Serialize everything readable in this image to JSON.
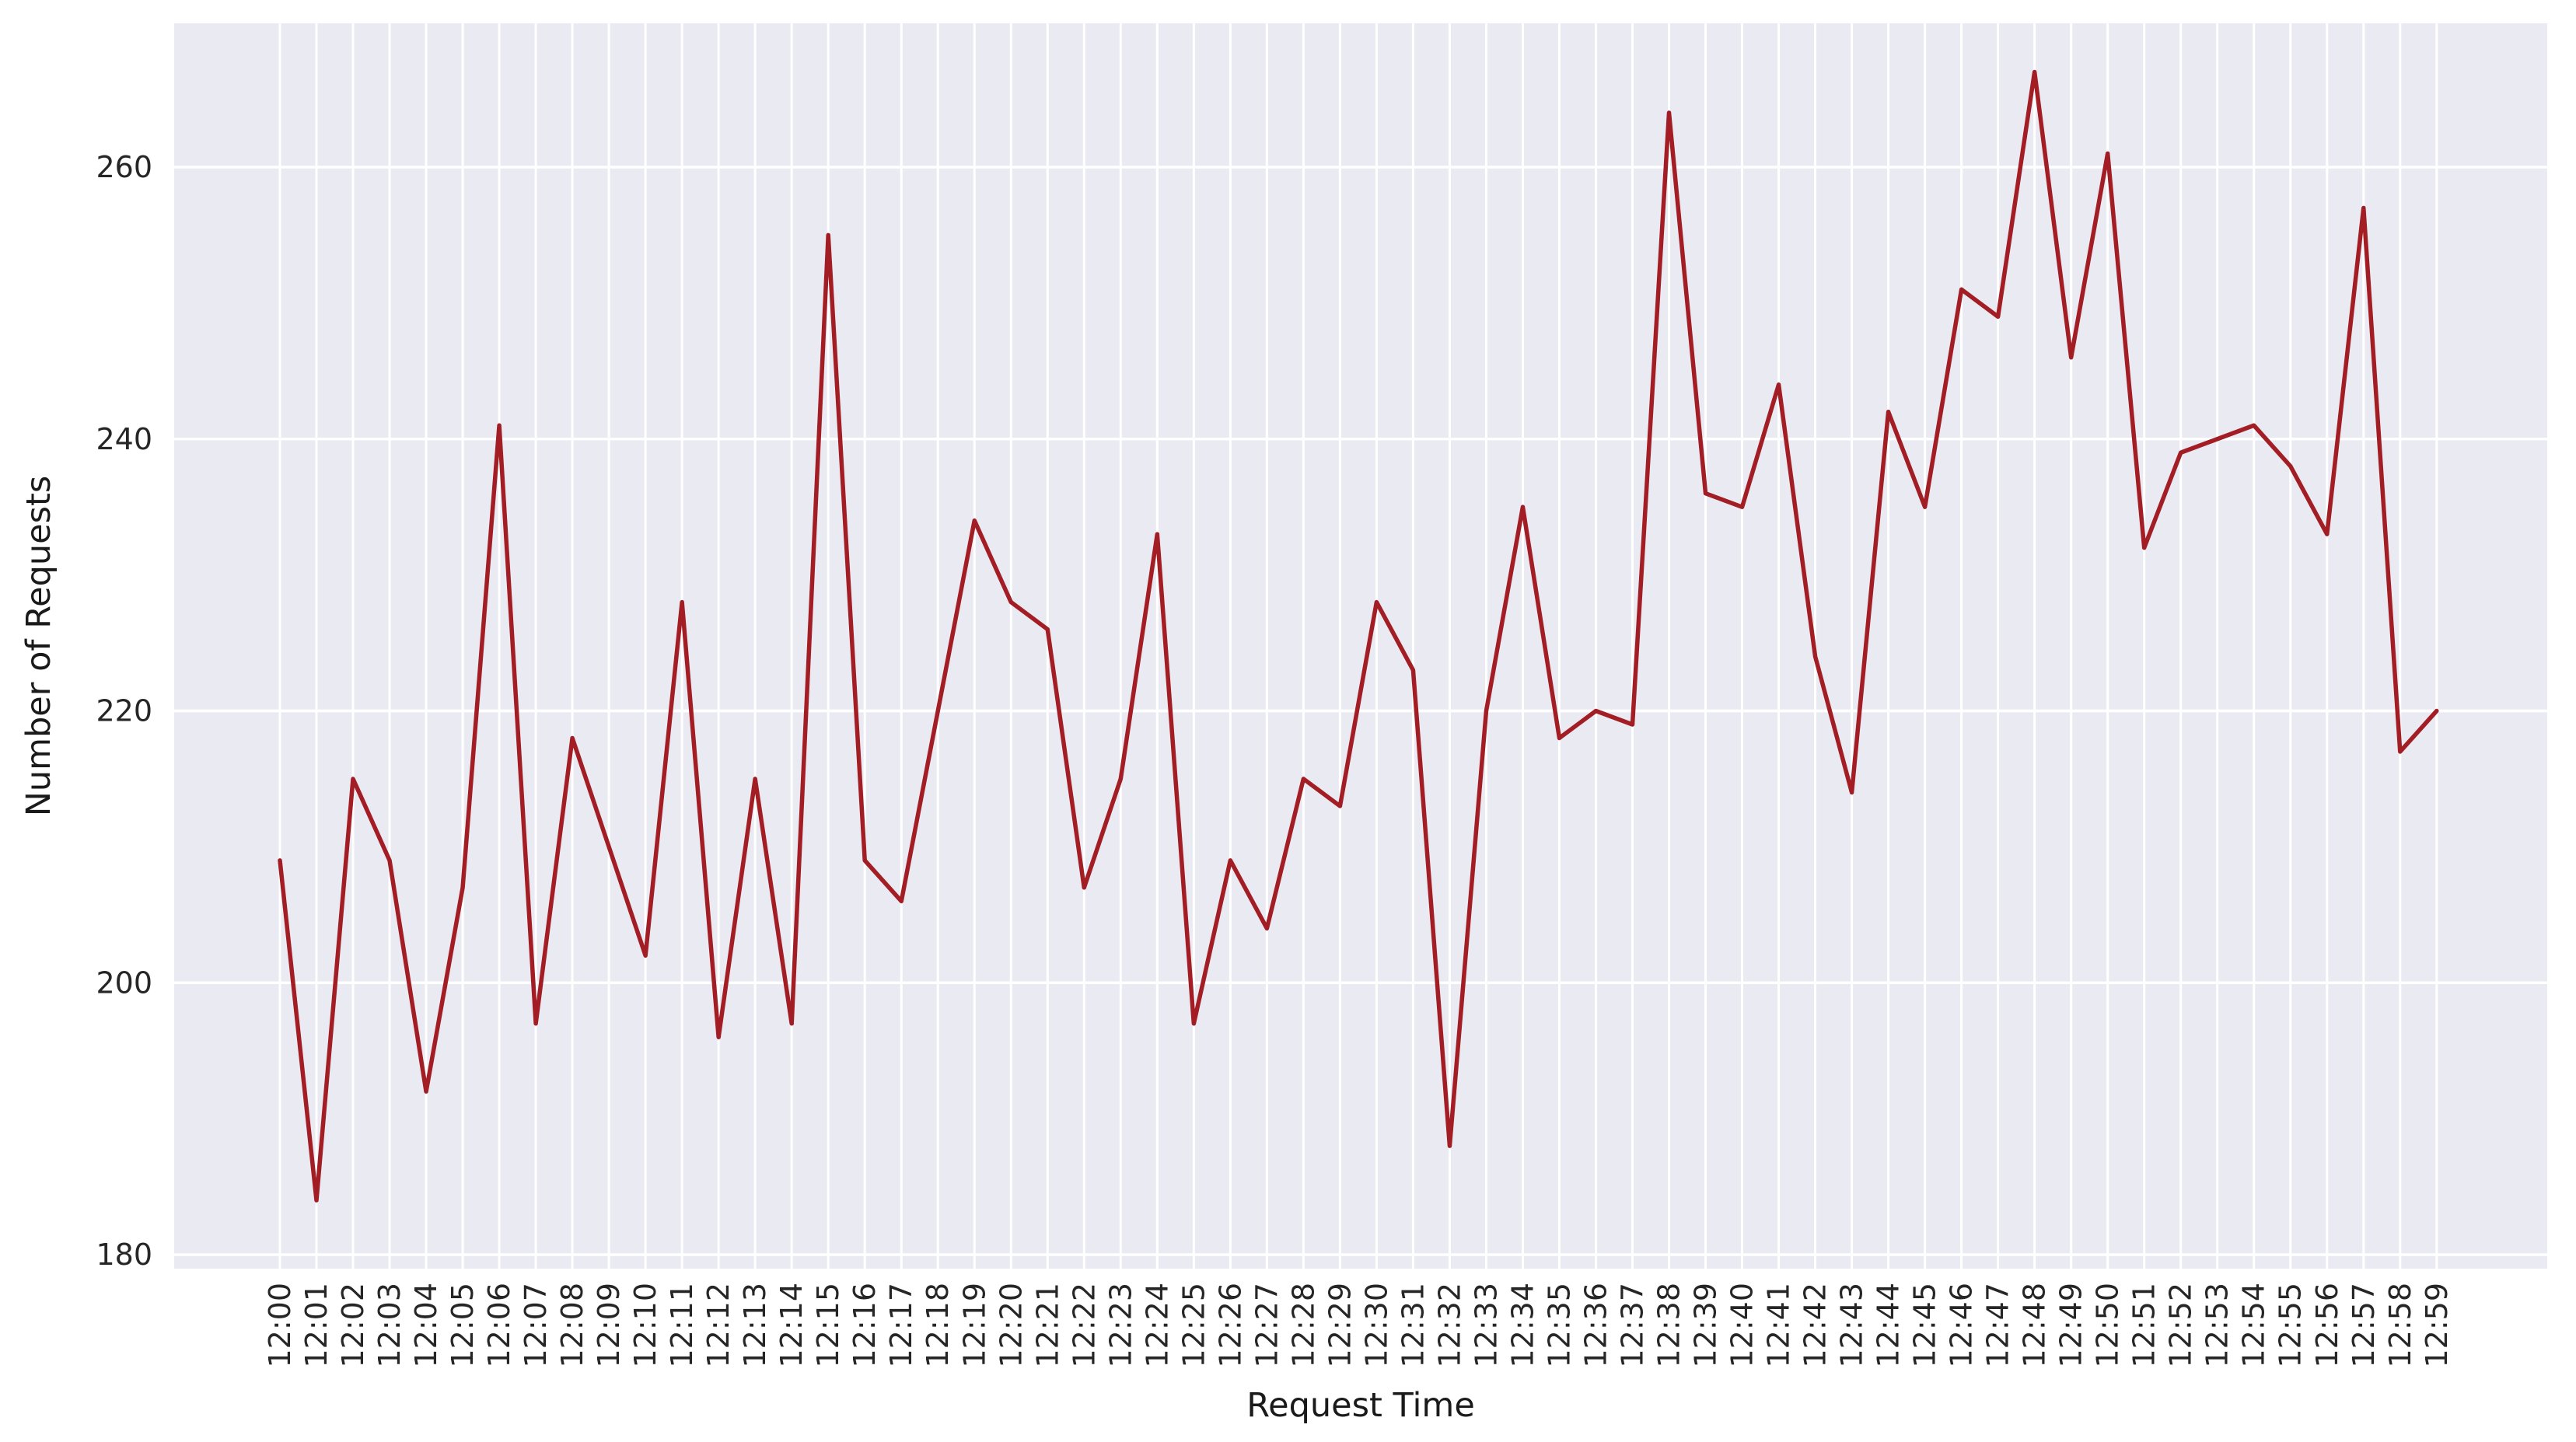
{
  "chart_data": {
    "type": "line",
    "title": "",
    "xlabel": "Request Time",
    "ylabel": "Number of Requests",
    "x": [
      "12:00",
      "12:01",
      "12:02",
      "12:03",
      "12:04",
      "12:05",
      "12:06",
      "12:07",
      "12:08",
      "12:09",
      "12:10",
      "12:11",
      "12:12",
      "12:13",
      "12:14",
      "12:15",
      "12:16",
      "12:17",
      "12:18",
      "12:19",
      "12:20",
      "12:21",
      "12:22",
      "12:23",
      "12:24",
      "12:25",
      "12:26",
      "12:27",
      "12:28",
      "12:29",
      "12:30",
      "12:31",
      "12:32",
      "12:33",
      "12:34",
      "12:35",
      "12:36",
      "12:37",
      "12:38",
      "12:39",
      "12:40",
      "12:41",
      "12:42",
      "12:43",
      "12:44",
      "12:45",
      "12:46",
      "12:47",
      "12:48",
      "12:49",
      "12:50",
      "12:51",
      "12:52",
      "12:53",
      "12:54",
      "12:55",
      "12:56",
      "12:57",
      "12:58",
      "12:59"
    ],
    "values": [
      209,
      184,
      215,
      209,
      192,
      207,
      241,
      197,
      218,
      210,
      202,
      228,
      196,
      215,
      197,
      255,
      209,
      206,
      220,
      234,
      228,
      226,
      207,
      215,
      233,
      197,
      209,
      204,
      215,
      213,
      228,
      223,
      188,
      220,
      235,
      218,
      220,
      219,
      264,
      236,
      235,
      244,
      224,
      214,
      242,
      235,
      251,
      249,
      267,
      246,
      261,
      232,
      239,
      240,
      241,
      238,
      233,
      257,
      217,
      220
    ],
    "yticks": [
      180,
      200,
      220,
      240,
      260
    ],
    "ylim": [
      179,
      271
    ],
    "grid": true,
    "legend_position": "none",
    "line_color": "#A21D24",
    "plot_bg_color": "#EAEAF2",
    "grid_color": "#FFFFFF",
    "text_color": "#262626"
  }
}
